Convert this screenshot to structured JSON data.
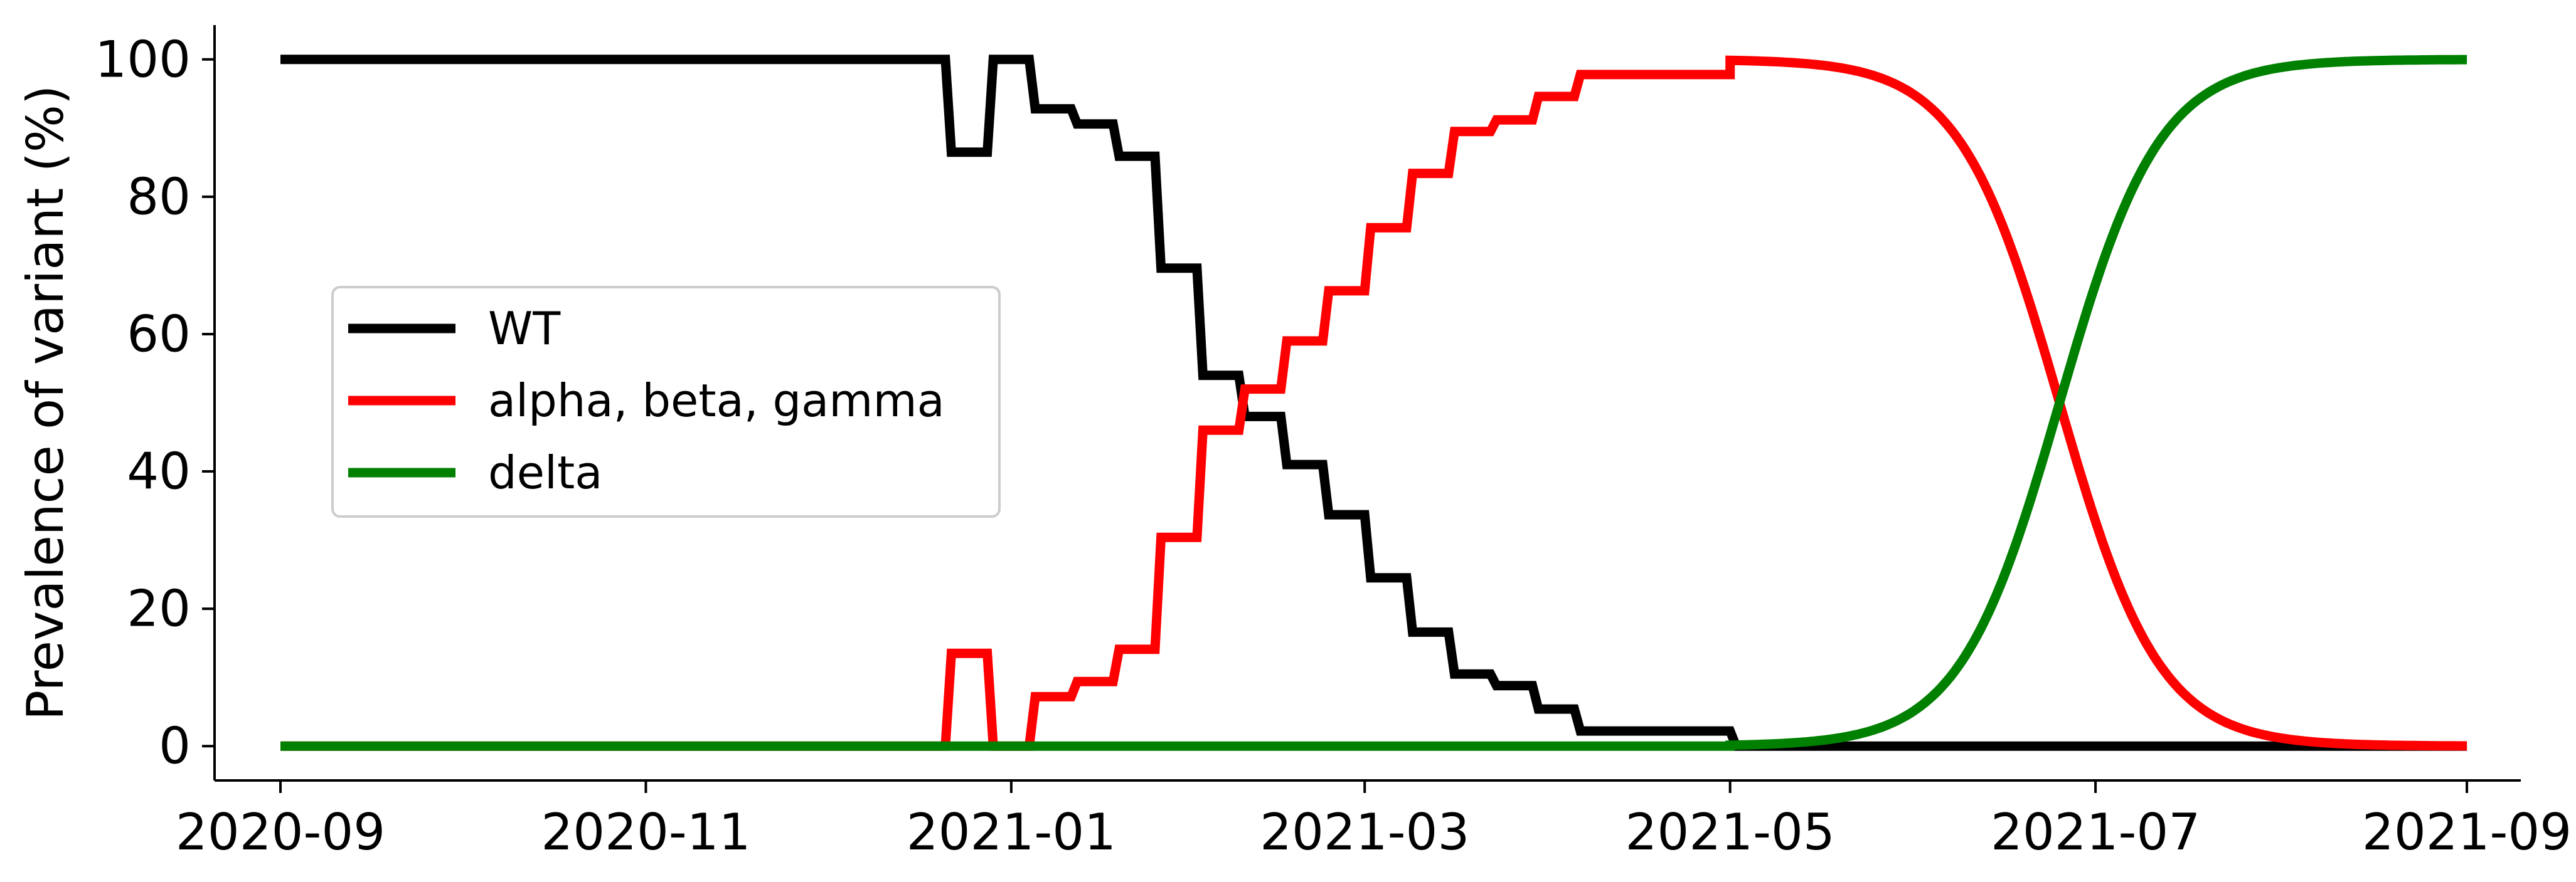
{
  "chart_data": {
    "type": "line",
    "ylabel": "Prevalence of variant (%)",
    "ylim": [
      -5,
      105
    ],
    "xlim": [
      "2020-08-21",
      "2021-09-10"
    ],
    "x_ticks": [
      {
        "date": "2020-09-01",
        "label": "2020-09"
      },
      {
        "date": "2020-11-01",
        "label": "2020-11"
      },
      {
        "date": "2021-01-01",
        "label": "2021-01"
      },
      {
        "date": "2021-03-01",
        "label": "2021-03"
      },
      {
        "date": "2021-05-01",
        "label": "2021-05"
      },
      {
        "date": "2021-07-01",
        "label": "2021-07"
      },
      {
        "date": "2021-09-01",
        "label": "2021-09"
      }
    ],
    "y_ticks": [
      0,
      20,
      40,
      60,
      80,
      100
    ],
    "grid": false,
    "legend": "center-left",
    "series": [
      {
        "name": "WT",
        "color": "#000000",
        "style": "step",
        "points": [
          [
            "2020-09-01",
            100
          ],
          [
            "2020-12-21",
            100
          ],
          [
            "2020-12-22",
            86.5
          ],
          [
            "2020-12-28",
            86.5
          ],
          [
            "2020-12-29",
            100
          ],
          [
            "2021-01-04",
            100
          ],
          [
            "2021-01-05",
            92.8
          ],
          [
            "2021-01-11",
            92.8
          ],
          [
            "2021-01-12",
            90.6
          ],
          [
            "2021-01-18",
            90.6
          ],
          [
            "2021-01-19",
            85.9
          ],
          [
            "2021-01-25",
            85.9
          ],
          [
            "2021-01-26",
            69.6
          ],
          [
            "2021-02-01",
            69.6
          ],
          [
            "2021-02-02",
            54.0
          ],
          [
            "2021-02-08",
            54.0
          ],
          [
            "2021-02-09",
            48.0
          ],
          [
            "2021-02-15",
            48.0
          ],
          [
            "2021-02-16",
            41.0
          ],
          [
            "2021-02-22",
            41.0
          ],
          [
            "2021-02-23",
            33.7
          ],
          [
            "2021-03-01",
            33.7
          ],
          [
            "2021-03-02",
            24.5
          ],
          [
            "2021-03-08",
            24.5
          ],
          [
            "2021-03-09",
            16.6
          ],
          [
            "2021-03-15",
            16.6
          ],
          [
            "2021-03-16",
            10.5
          ],
          [
            "2021-03-22",
            10.5
          ],
          [
            "2021-03-23",
            8.8
          ],
          [
            "2021-03-29",
            8.8
          ],
          [
            "2021-03-30",
            5.4
          ],
          [
            "2021-04-05",
            5.4
          ],
          [
            "2021-04-06",
            2.2
          ],
          [
            "2021-05-01",
            2.2
          ],
          [
            "2021-05-02",
            0
          ],
          [
            "2021-09-01",
            0
          ]
        ]
      },
      {
        "name": "alpha, beta, gamma",
        "color": "#ff0000",
        "style": "step-then-logistic",
        "points": [
          [
            "2020-09-01",
            0
          ],
          [
            "2020-12-21",
            0
          ],
          [
            "2020-12-22",
            13.5
          ],
          [
            "2020-12-28",
            13.5
          ],
          [
            "2020-12-29",
            0
          ],
          [
            "2021-01-04",
            0
          ],
          [
            "2021-01-05",
            7.2
          ],
          [
            "2021-01-11",
            7.2
          ],
          [
            "2021-01-12",
            9.4
          ],
          [
            "2021-01-18",
            9.4
          ],
          [
            "2021-01-19",
            14.1
          ],
          [
            "2021-01-25",
            14.1
          ],
          [
            "2021-01-26",
            30.4
          ],
          [
            "2021-02-01",
            30.4
          ],
          [
            "2021-02-02",
            46.0
          ],
          [
            "2021-02-08",
            46.0
          ],
          [
            "2021-02-09",
            52.0
          ],
          [
            "2021-02-15",
            52.0
          ],
          [
            "2021-02-16",
            59.0
          ],
          [
            "2021-02-22",
            59.0
          ],
          [
            "2021-02-23",
            66.3
          ],
          [
            "2021-03-01",
            66.3
          ],
          [
            "2021-03-02",
            75.5
          ],
          [
            "2021-03-08",
            75.5
          ],
          [
            "2021-03-09",
            83.4
          ],
          [
            "2021-03-15",
            83.4
          ],
          [
            "2021-03-16",
            89.5
          ],
          [
            "2021-03-22",
            89.5
          ],
          [
            "2021-03-23",
            91.2
          ],
          [
            "2021-03-29",
            91.2
          ],
          [
            "2021-03-30",
            94.6
          ],
          [
            "2021-04-05",
            94.6
          ],
          [
            "2021-04-06",
            97.8
          ],
          [
            "2021-05-01",
            97.8
          ]
        ],
        "logistic": {
          "start": "2021-05-01",
          "end": "2021-09-01",
          "midpoint": "2021-06-25",
          "k": 0.12,
          "decreasing": true
        }
      },
      {
        "name": "delta",
        "color": "#008000",
        "style": "flat-then-logistic",
        "points": [
          [
            "2020-09-01",
            0
          ],
          [
            "2021-05-01",
            0
          ]
        ],
        "logistic": {
          "start": "2021-05-01",
          "end": "2021-09-01",
          "midpoint": "2021-06-25",
          "k": 0.12,
          "decreasing": false
        }
      }
    ]
  }
}
